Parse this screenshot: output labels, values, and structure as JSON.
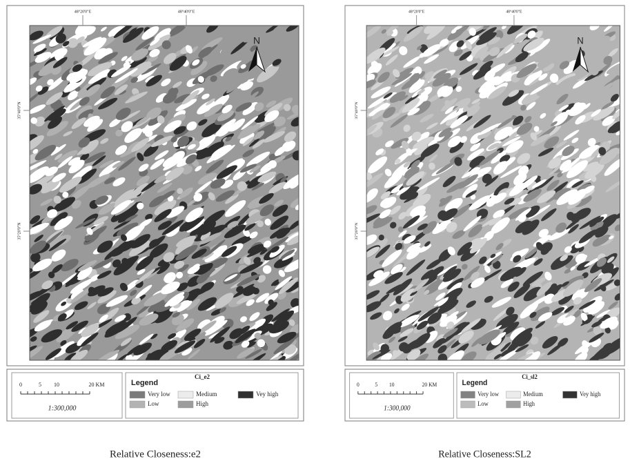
{
  "panels": [
    {
      "coords_top": [
        "48°20'0\"E",
        "48°40'0\"E"
      ],
      "coords_left": [
        "35°40'0\"N",
        "35°20'0\"N"
      ],
      "north": "N",
      "scale_labels": [
        "0",
        "5",
        "10",
        "20 KM"
      ],
      "scale_ratio": "1:300,000",
      "legend_title": "Legend",
      "layer": "Ci_e2",
      "legend_items": [
        "Very low",
        "Low",
        "Medium",
        "High",
        "Vey high"
      ],
      "caption": "Relative Closeness:e2"
    },
    {
      "coords_top": [
        "48°20'0\"E",
        "48°40'0\"E"
      ],
      "coords_left": [
        "35°40'0\"N",
        "35°20'0\"N"
      ],
      "north": "N",
      "scale_labels": [
        "0",
        "5",
        "10",
        "20 KM"
      ],
      "scale_ratio": "1:300,000",
      "legend_title": "Legend",
      "layer": "Ci_sl2",
      "legend_items": [
        "Very low",
        "Low",
        "Medium",
        "High",
        "Vey high"
      ],
      "caption": "Relative Closeness:SL2"
    }
  ]
}
